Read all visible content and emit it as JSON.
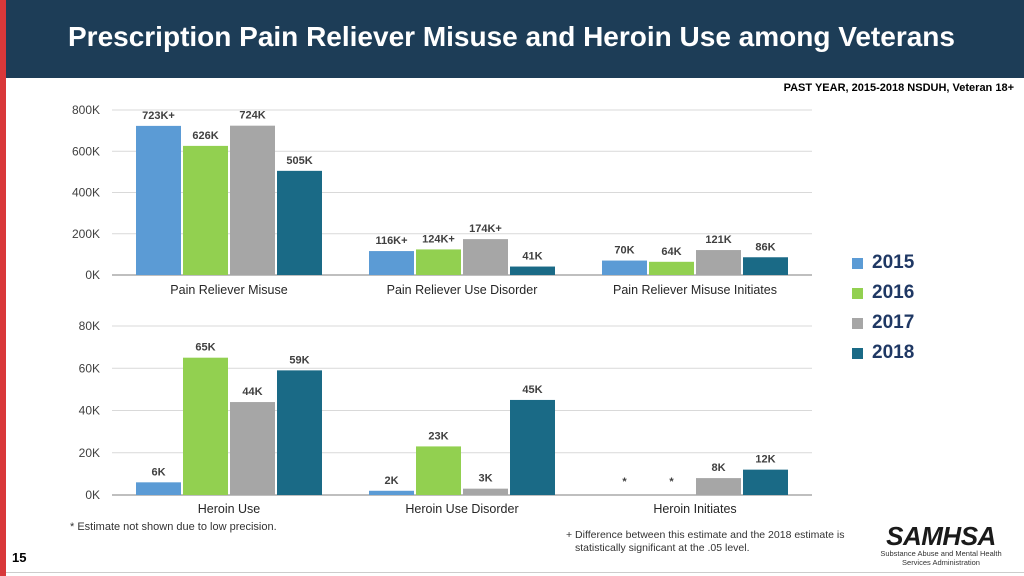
{
  "title": "Prescription Pain Reliever Misuse and Heroin Use among Veterans",
  "subtitle": "PAST YEAR, 2015-2018 NSDUH, Veteran 18+",
  "colors": {
    "header_bg": "#1d3d57",
    "red_accent": "#d9383a",
    "year_2015": "#5b9bd5",
    "year_2016": "#92d050",
    "year_2017": "#a6a6a6",
    "year_2018": "#1a6a86"
  },
  "legend": [
    {
      "label": "2015",
      "color": "#5b9bd5"
    },
    {
      "label": "2016",
      "color": "#92d050"
    },
    {
      "label": "2017",
      "color": "#a6a6a6"
    },
    {
      "label": "2018",
      "color": "#1a6a86"
    }
  ],
  "chart_data": [
    {
      "type": "bar",
      "title": "",
      "xlabel": "",
      "ylabel": "",
      "ylim": [
        0,
        800
      ],
      "yticks": [
        "0K",
        "200K",
        "400K",
        "600K",
        "800K"
      ],
      "categories": [
        "Pain Reliever Misuse",
        "Pain Reliever Use Disorder",
        "Pain Reliever Misuse Initiates"
      ],
      "series": [
        {
          "name": "2015",
          "values": [
            723,
            116,
            70
          ],
          "labels": [
            "723K+",
            "116K+",
            "70K"
          ]
        },
        {
          "name": "2016",
          "values": [
            626,
            124,
            64
          ],
          "labels": [
            "626K",
            "124K+",
            "64K"
          ]
        },
        {
          "name": "2017",
          "values": [
            724,
            174,
            121
          ],
          "labels": [
            "724K",
            "174K+",
            "121K"
          ]
        },
        {
          "name": "2018",
          "values": [
            505,
            41,
            86
          ],
          "labels": [
            "505K",
            "41K",
            "86K"
          ]
        }
      ]
    },
    {
      "type": "bar",
      "title": "",
      "xlabel": "",
      "ylabel": "",
      "ylim": [
        0,
        80
      ],
      "yticks": [
        "0K",
        "20K",
        "40K",
        "60K",
        "80K"
      ],
      "categories": [
        "Heroin Use",
        "Heroin Use Disorder",
        "Heroin Initiates"
      ],
      "series": [
        {
          "name": "2015",
          "values": [
            6,
            2,
            null
          ],
          "labels": [
            "6K",
            "2K",
            "*"
          ]
        },
        {
          "name": "2016",
          "values": [
            65,
            23,
            null
          ],
          "labels": [
            "65K",
            "23K",
            "*"
          ]
        },
        {
          "name": "2017",
          "values": [
            44,
            3,
            8
          ],
          "labels": [
            "44K",
            "3K",
            "8K"
          ]
        },
        {
          "name": "2018",
          "values": [
            59,
            45,
            12
          ],
          "labels": [
            "59K",
            "45K",
            "12K"
          ]
        }
      ]
    }
  ],
  "footnote": "* Estimate not shown due to low precision.",
  "sig_note_line1": "+ Difference between this estimate and the 2018 estimate is",
  "sig_note_line2": "statistically significant at the .05 level.",
  "page_number": "15",
  "logo_word": "SAMHSA",
  "logo_sub1": "Substance Abuse and Mental Health",
  "logo_sub2": "Services Administration"
}
